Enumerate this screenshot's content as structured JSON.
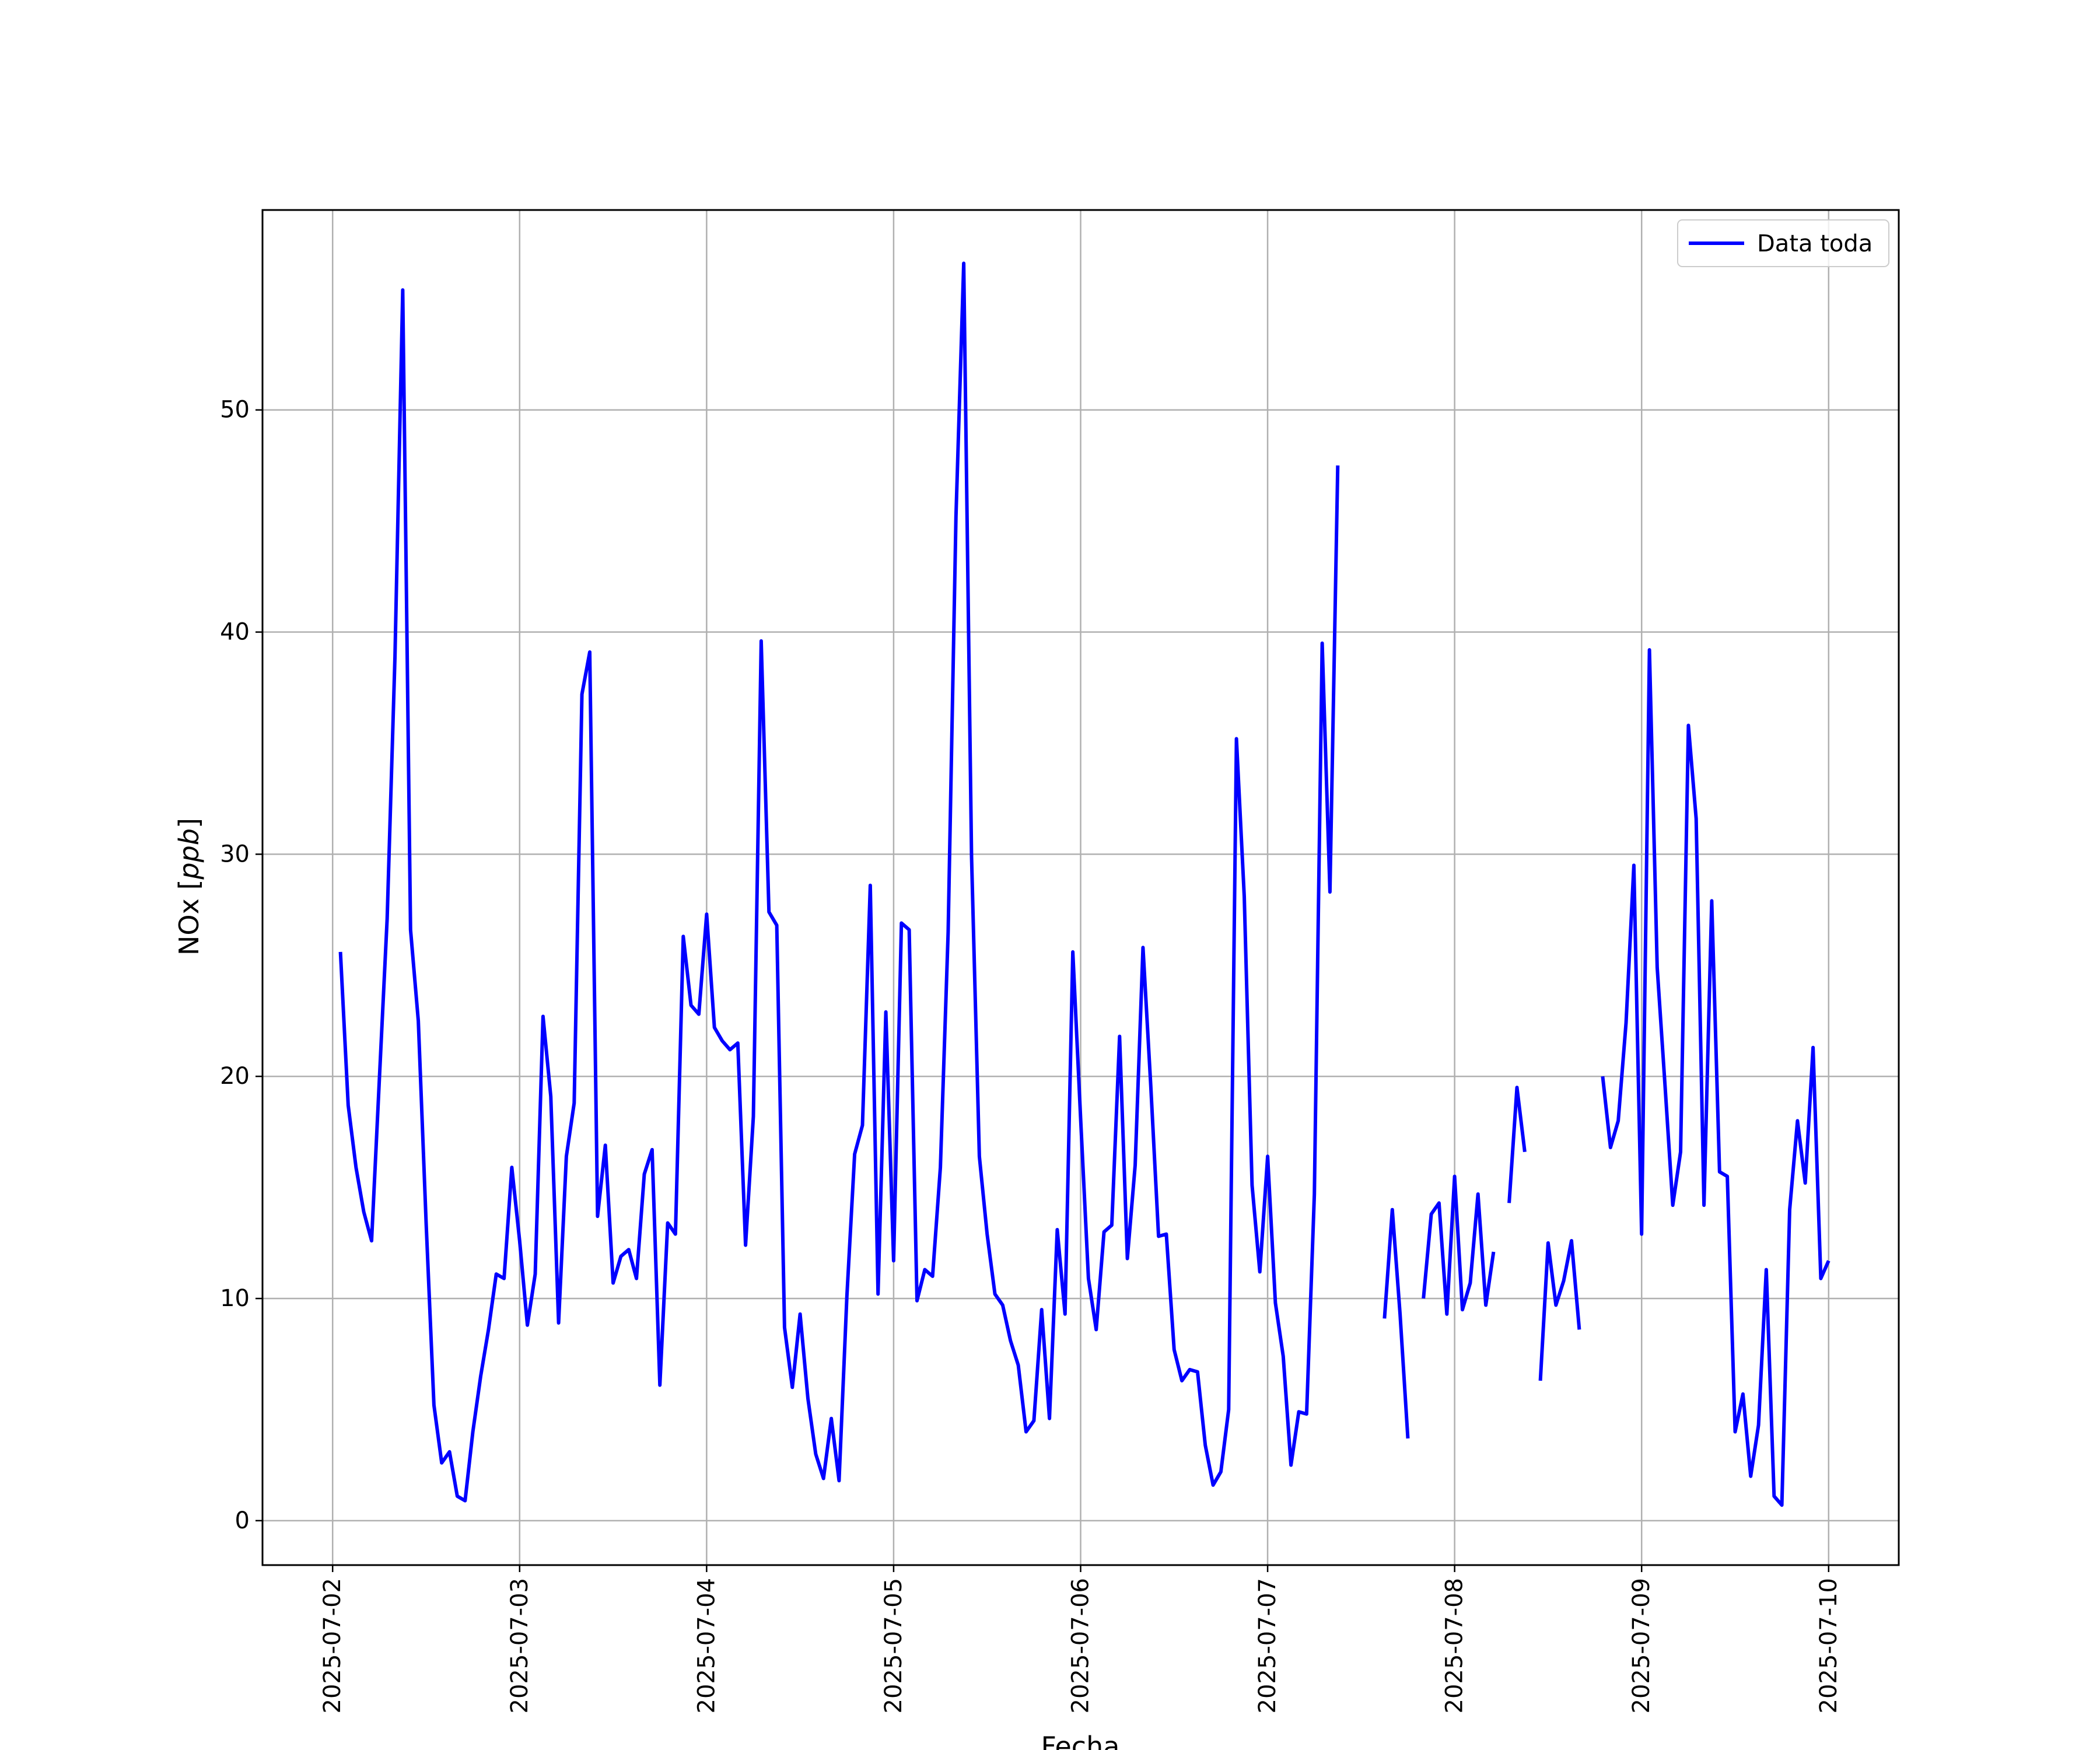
{
  "chart_data": {
    "type": "line",
    "xlabel": "Fecha",
    "ylabel": "NOx [ppb]",
    "xlim": [
      "2025-07-01 15:00",
      "2025-07-10 09:00"
    ],
    "ylim": [
      -2,
      59
    ],
    "x_tick_labels": [
      "2025-07-02",
      "2025-07-03",
      "2025-07-04",
      "2025-07-05",
      "2025-07-06",
      "2025-07-07",
      "2025-07-08",
      "2025-07-09",
      "2025-07-10"
    ],
    "y_ticks": [
      0,
      10,
      20,
      30,
      40,
      50
    ],
    "grid": true,
    "legend_position": "top-right",
    "series": [
      {
        "name": "Data toda",
        "color": "#0000ff",
        "points": [
          [
            "2025-07-02 01:00",
            25.6
          ],
          [
            "2025-07-02 02:00",
            18.7
          ],
          [
            "2025-07-02 03:00",
            15.9
          ],
          [
            "2025-07-02 04:00",
            13.9
          ],
          [
            "2025-07-02 05:00",
            12.6
          ],
          [
            "2025-07-02 06:00",
            19.9
          ],
          [
            "2025-07-02 07:00",
            27.1
          ],
          [
            "2025-07-02 08:00",
            38.9
          ],
          [
            "2025-07-02 09:00",
            55.4
          ],
          [
            "2025-07-02 10:00",
            26.6
          ],
          [
            "2025-07-02 11:00",
            22.5
          ],
          [
            "2025-07-02 12:00",
            13.4
          ],
          [
            "2025-07-02 13:00",
            5.2
          ],
          [
            "2025-07-02 14:00",
            2.6
          ],
          [
            "2025-07-02 15:00",
            3.1
          ],
          [
            "2025-07-02 16:00",
            1.1
          ],
          [
            "2025-07-02 17:00",
            0.9
          ],
          [
            "2025-07-02 18:00",
            4.0
          ],
          [
            "2025-07-02 19:00",
            6.5
          ],
          [
            "2025-07-02 20:00",
            8.6
          ],
          [
            "2025-07-02 21:00",
            11.1
          ],
          [
            "2025-07-02 22:00",
            10.9
          ],
          [
            "2025-07-02 23:00",
            15.9
          ],
          [
            "2025-07-03 00:00",
            12.6
          ],
          [
            "2025-07-03 01:00",
            8.8
          ],
          [
            "2025-07-03 02:00",
            11.1
          ],
          [
            "2025-07-03 03:00",
            22.7
          ],
          [
            "2025-07-03 04:00",
            19.1
          ],
          [
            "2025-07-03 05:00",
            8.9
          ],
          [
            "2025-07-03 06:00",
            16.4
          ],
          [
            "2025-07-03 07:00",
            18.8
          ],
          [
            "2025-07-03 08:00",
            37.2
          ],
          [
            "2025-07-03 09:00",
            39.1
          ],
          [
            "2025-07-03 10:00",
            13.7
          ],
          [
            "2025-07-03 11:00",
            16.9
          ],
          [
            "2025-07-03 12:00",
            10.7
          ],
          [
            "2025-07-03 13:00",
            11.9
          ],
          [
            "2025-07-03 14:00",
            12.2
          ],
          [
            "2025-07-03 15:00",
            10.9
          ],
          [
            "2025-07-03 16:00",
            15.6
          ],
          [
            "2025-07-03 17:00",
            16.7
          ],
          [
            "2025-07-03 18:00",
            6.1
          ],
          [
            "2025-07-03 19:00",
            13.4
          ],
          [
            "2025-07-03 20:00",
            12.9
          ],
          [
            "2025-07-03 21:00",
            26.3
          ],
          [
            "2025-07-03 22:00",
            23.2
          ],
          [
            "2025-07-03 23:00",
            22.8
          ],
          [
            "2025-07-04 00:00",
            27.3
          ],
          [
            "2025-07-04 01:00",
            22.2
          ],
          [
            "2025-07-04 02:00",
            21.6
          ],
          [
            "2025-07-04 03:00",
            21.2
          ],
          [
            "2025-07-04 04:00",
            21.5
          ],
          [
            "2025-07-04 05:00",
            12.4
          ],
          [
            "2025-07-04 06:00",
            18.2
          ],
          [
            "2025-07-04 07:00",
            39.6
          ],
          [
            "2025-07-04 08:00",
            27.4
          ],
          [
            "2025-07-04 09:00",
            26.8
          ],
          [
            "2025-07-04 10:00",
            8.7
          ],
          [
            "2025-07-04 11:00",
            6.0
          ],
          [
            "2025-07-04 12:00",
            9.3
          ],
          [
            "2025-07-04 13:00",
            5.5
          ],
          [
            "2025-07-04 14:00",
            3.0
          ],
          [
            "2025-07-04 15:00",
            1.9
          ],
          [
            "2025-07-04 16:00",
            4.6
          ],
          [
            "2025-07-04 17:00",
            1.8
          ],
          [
            "2025-07-04 18:00",
            10.1
          ],
          [
            "2025-07-04 19:00",
            16.5
          ],
          [
            "2025-07-04 20:00",
            17.8
          ],
          [
            "2025-07-04 21:00",
            28.6
          ],
          [
            "2025-07-04 22:00",
            10.2
          ],
          [
            "2025-07-04 23:00",
            22.9
          ],
          [
            "2025-07-05 00:00",
            11.7
          ],
          [
            "2025-07-05 01:00",
            26.9
          ],
          [
            "2025-07-05 02:00",
            26.6
          ],
          [
            "2025-07-05 03:00",
            9.9
          ],
          [
            "2025-07-05 04:00",
            11.3
          ],
          [
            "2025-07-05 05:00",
            11.0
          ],
          [
            "2025-07-05 06:00",
            15.9
          ],
          [
            "2025-07-05 07:00",
            26.5
          ],
          [
            "2025-07-05 08:00",
            45.2
          ],
          [
            "2025-07-05 09:00",
            56.6
          ],
          [
            "2025-07-05 10:00",
            29.9
          ],
          [
            "2025-07-05 11:00",
            16.4
          ],
          [
            "2025-07-05 12:00",
            12.9
          ],
          [
            "2025-07-05 13:00",
            10.2
          ],
          [
            "2025-07-05 14:00",
            9.7
          ],
          [
            "2025-07-05 15:00",
            8.1
          ],
          [
            "2025-07-05 16:00",
            7.0
          ],
          [
            "2025-07-05 17:00",
            4.0
          ],
          [
            "2025-07-05 18:00",
            4.5
          ],
          [
            "2025-07-05 19:00",
            9.5
          ],
          [
            "2025-07-05 20:00",
            4.6
          ],
          [
            "2025-07-05 21:00",
            13.1
          ],
          [
            "2025-07-05 22:00",
            9.3
          ],
          [
            "2025-07-05 23:00",
            25.6
          ],
          [
            "2025-07-06 00:00",
            18.1
          ],
          [
            "2025-07-06 01:00",
            10.9
          ],
          [
            "2025-07-06 02:00",
            8.6
          ],
          [
            "2025-07-06 03:00",
            13.0
          ],
          [
            "2025-07-06 04:00",
            13.3
          ],
          [
            "2025-07-06 05:00",
            21.8
          ],
          [
            "2025-07-06 06:00",
            11.8
          ],
          [
            "2025-07-06 07:00",
            16.0
          ],
          [
            "2025-07-06 08:00",
            25.8
          ],
          [
            "2025-07-06 09:00",
            19.6
          ],
          [
            "2025-07-06 10:00",
            12.8
          ],
          [
            "2025-07-06 11:00",
            12.9
          ],
          [
            "2025-07-06 12:00",
            7.7
          ],
          [
            "2025-07-06 13:00",
            6.3
          ],
          [
            "2025-07-06 14:00",
            6.8
          ],
          [
            "2025-07-06 15:00",
            6.7
          ],
          [
            "2025-07-06 16:00",
            3.4
          ],
          [
            "2025-07-06 17:00",
            1.6
          ],
          [
            "2025-07-06 18:00",
            2.2
          ],
          [
            "2025-07-06 19:00",
            5.0
          ],
          [
            "2025-07-06 20:00",
            35.2
          ],
          [
            "2025-07-06 21:00",
            28.1
          ],
          [
            "2025-07-06 22:00",
            15.1
          ],
          [
            "2025-07-06 23:00",
            11.2
          ],
          [
            "2025-07-07 00:00",
            16.4
          ],
          [
            "2025-07-07 01:00",
            9.8
          ],
          [
            "2025-07-07 02:00",
            7.4
          ],
          [
            "2025-07-07 03:00",
            2.5
          ],
          [
            "2025-07-07 04:00",
            4.9
          ],
          [
            "2025-07-07 05:00",
            4.8
          ],
          [
            "2025-07-07 06:00",
            14.7
          ],
          [
            "2025-07-07 07:00",
            39.5
          ],
          [
            "2025-07-07 08:00",
            28.3
          ],
          [
            "2025-07-07 09:00",
            47.5
          ],
          null,
          [
            "2025-07-07 15:00",
            9.1
          ],
          [
            "2025-07-07 16:00",
            14.0
          ],
          [
            "2025-07-07 17:00",
            9.3
          ],
          [
            "2025-07-07 18:00",
            3.7
          ],
          null,
          [
            "2025-07-07 20:00",
            10.0
          ],
          [
            "2025-07-07 21:00",
            13.8
          ],
          [
            "2025-07-07 22:00",
            14.3
          ],
          [
            "2025-07-07 23:00",
            9.3
          ],
          [
            "2025-07-08 00:00",
            15.5
          ],
          [
            "2025-07-08 01:00",
            9.5
          ],
          [
            "2025-07-08 02:00",
            10.7
          ],
          [
            "2025-07-08 03:00",
            14.7
          ],
          [
            "2025-07-08 04:00",
            9.7
          ],
          [
            "2025-07-08 05:00",
            12.1
          ],
          null,
          [
            "2025-07-08 07:00",
            14.3
          ],
          [
            "2025-07-08 08:00",
            19.5
          ],
          [
            "2025-07-08 09:00",
            16.6
          ],
          null,
          [
            "2025-07-08 11:00",
            6.3
          ],
          [
            "2025-07-08 12:00",
            12.5
          ],
          [
            "2025-07-08 13:00",
            9.7
          ],
          [
            "2025-07-08 14:00",
            10.8
          ],
          [
            "2025-07-08 15:00",
            12.6
          ],
          [
            "2025-07-08 16:00",
            8.6
          ],
          null,
          [
            "2025-07-08 19:00",
            20.0
          ],
          [
            "2025-07-08 20:00",
            16.8
          ],
          [
            "2025-07-08 21:00",
            18.0
          ],
          [
            "2025-07-08 22:00",
            22.4
          ],
          [
            "2025-07-08 23:00",
            29.5
          ],
          [
            "2025-07-09 00:00",
            12.9
          ],
          [
            "2025-07-09 01:00",
            39.2
          ],
          [
            "2025-07-09 02:00",
            24.9
          ],
          [
            "2025-07-09 03:00",
            19.6
          ],
          [
            "2025-07-09 04:00",
            14.2
          ],
          [
            "2025-07-09 05:00",
            16.6
          ],
          [
            "2025-07-09 06:00",
            35.8
          ],
          [
            "2025-07-09 07:00",
            31.6
          ],
          [
            "2025-07-09 08:00",
            14.2
          ],
          [
            "2025-07-09 09:00",
            27.9
          ],
          [
            "2025-07-09 10:00",
            15.7
          ],
          [
            "2025-07-09 11:00",
            15.5
          ],
          [
            "2025-07-09 12:00",
            4.0
          ],
          [
            "2025-07-09 13:00",
            5.7
          ],
          [
            "2025-07-09 14:00",
            2.0
          ],
          [
            "2025-07-09 15:00",
            4.3
          ],
          [
            "2025-07-09 16:00",
            11.3
          ],
          [
            "2025-07-09 17:00",
            1.1
          ],
          [
            "2025-07-09 18:00",
            0.7
          ],
          [
            "2025-07-09 19:00",
            14.0
          ],
          [
            "2025-07-09 20:00",
            18.0
          ],
          [
            "2025-07-09 21:00",
            15.2
          ],
          [
            "2025-07-09 22:00",
            21.3
          ],
          [
            "2025-07-09 23:00",
            10.9
          ],
          [
            "2025-07-10 00:00",
            11.7
          ]
        ]
      }
    ]
  }
}
